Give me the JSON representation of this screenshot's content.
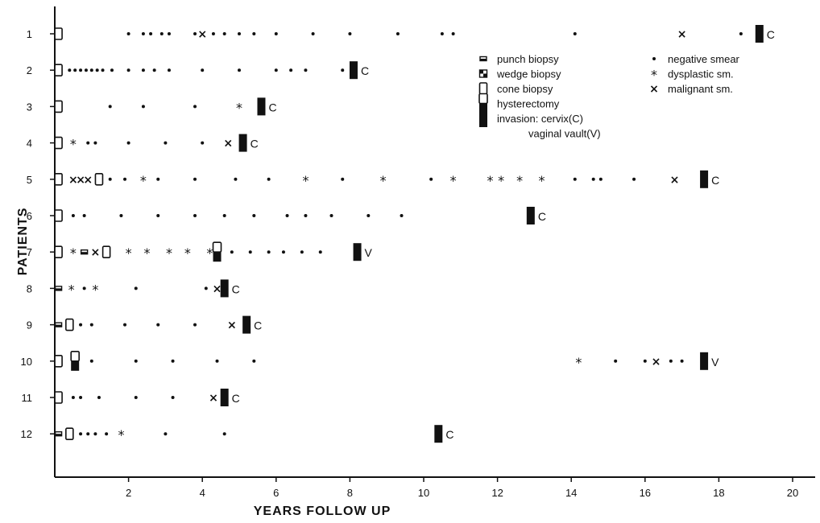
{
  "chart_data": {
    "type": "scatter",
    "xlabel": "YEARS FOLLOW UP",
    "ylabel": "PATIENTS",
    "xlim": [
      0,
      20.5
    ],
    "x_ticks": [
      2,
      4,
      6,
      8,
      10,
      12,
      14,
      16,
      18,
      20
    ],
    "y_categories": [
      "1",
      "2",
      "3",
      "4",
      "5",
      "6",
      "7",
      "8",
      "9",
      "10",
      "11",
      "12"
    ],
    "legend": {
      "position": "top-right",
      "items": [
        {
          "symbol": "punch",
          "label": "punch biopsy"
        },
        {
          "symbol": "wedge",
          "label": "wedge biopsy"
        },
        {
          "symbol": "cone",
          "label": "cone biopsy"
        },
        {
          "symbol": "hysterectomy",
          "label": "hysterectomy"
        },
        {
          "symbol": "invasion",
          "label": "invasion: cervix(C)"
        },
        {
          "symbol": "none",
          "label": "vaginal vault(V)"
        },
        {
          "symbol": "negative",
          "label": "negative smear"
        },
        {
          "symbol": "dysplastic",
          "label": "dysplastic sm."
        },
        {
          "symbol": "malignant",
          "label": "malignant sm."
        }
      ]
    },
    "series": [
      {
        "patient": "1",
        "events": [
          {
            "type": "cone",
            "x": 0.1
          },
          {
            "type": "negative",
            "x": [
              2.0,
              2.4,
              2.6,
              2.9,
              3.1,
              3.8,
              4.3,
              4.6,
              5.0,
              5.4,
              6.0,
              7.0,
              8.0,
              9.3,
              10.5,
              10.8,
              14.1,
              18.6
            ]
          },
          {
            "type": "malignant",
            "x": [
              4.0,
              17.0
            ]
          },
          {
            "type": "invasion",
            "x": 19.1,
            "label": "C"
          }
        ]
      },
      {
        "patient": "2",
        "events": [
          {
            "type": "cone",
            "x": 0.1
          },
          {
            "type": "negative",
            "x": [
              0.4,
              0.55,
              0.7,
              0.85,
              1.0,
              1.15,
              1.3,
              1.55,
              2.0,
              2.4,
              2.7,
              3.1,
              4.0,
              5.0,
              6.0,
              6.4,
              6.8,
              7.8
            ]
          },
          {
            "type": "invasion",
            "x": 8.1,
            "label": "C"
          }
        ]
      },
      {
        "patient": "3",
        "events": [
          {
            "type": "cone",
            "x": 0.1
          },
          {
            "type": "negative",
            "x": [
              1.5,
              2.4,
              3.8
            ]
          },
          {
            "type": "dysplastic",
            "x": [
              5.0
            ]
          },
          {
            "type": "invasion",
            "x": 5.6,
            "label": "C"
          }
        ]
      },
      {
        "patient": "4",
        "events": [
          {
            "type": "cone",
            "x": 0.1
          },
          {
            "type": "dysplastic",
            "x": [
              0.5
            ]
          },
          {
            "type": "negative",
            "x": [
              0.9,
              1.1,
              2.0,
              3.0,
              4.0
            ]
          },
          {
            "type": "malignant",
            "x": [
              4.7
            ]
          },
          {
            "type": "invasion",
            "x": 5.1,
            "label": "C"
          }
        ]
      },
      {
        "patient": "5",
        "events": [
          {
            "type": "cone",
            "x": [
              0.1,
              1.2
            ]
          },
          {
            "type": "malignant",
            "x": [
              0.5,
              0.7,
              0.9
            ]
          },
          {
            "type": "negative",
            "x": [
              1.5,
              1.9,
              2.8,
              3.8,
              4.9,
              5.8,
              7.8,
              10.2,
              14.1,
              14.6,
              14.8,
              15.7
            ]
          },
          {
            "type": "dysplastic",
            "x": [
              2.4,
              6.8,
              8.9,
              10.8,
              11.8,
              12.1,
              12.6,
              13.2
            ]
          },
          {
            "type": "malignant",
            "x": [
              16.8
            ]
          },
          {
            "type": "invasion",
            "x": 17.6,
            "label": "C"
          }
        ]
      },
      {
        "patient": "6",
        "events": [
          {
            "type": "cone",
            "x": 0.1
          },
          {
            "type": "negative",
            "x": [
              0.5,
              0.8,
              1.8,
              2.8,
              3.8,
              4.6,
              5.4,
              6.3,
              6.8,
              7.5,
              8.5,
              9.4
            ]
          },
          {
            "type": "invasion",
            "x": 12.9,
            "label": "C"
          }
        ]
      },
      {
        "patient": "7",
        "events": [
          {
            "type": "cone",
            "x": [
              0.1,
              1.4
            ]
          },
          {
            "type": "dysplastic",
            "x": [
              0.5,
              2.0,
              2.5,
              3.1,
              3.6,
              4.2
            ]
          },
          {
            "type": "punch",
            "x": [
              0.8
            ]
          },
          {
            "type": "malignant",
            "x": [
              1.1
            ]
          },
          {
            "type": "hysterectomy",
            "x": 4.4
          },
          {
            "type": "negative",
            "x": [
              4.8,
              5.3,
              5.8,
              6.2,
              6.7,
              7.2
            ]
          },
          {
            "type": "invasion",
            "x": 8.2,
            "label": "V"
          }
        ]
      },
      {
        "patient": "8",
        "events": [
          {
            "type": "punch",
            "x": [
              0.1
            ]
          },
          {
            "type": "dysplastic",
            "x": [
              0.45,
              1.1
            ]
          },
          {
            "type": "negative",
            "x": [
              0.8,
              2.2,
              4.1
            ]
          },
          {
            "type": "malignant",
            "x": [
              4.4
            ]
          },
          {
            "type": "invasion",
            "x": 4.6,
            "label": "C"
          }
        ]
      },
      {
        "patient": "9",
        "events": [
          {
            "type": "punch",
            "x": [
              0.1
            ]
          },
          {
            "type": "cone",
            "x": [
              0.4
            ]
          },
          {
            "type": "negative",
            "x": [
              0.7,
              1.0,
              1.9,
              2.8,
              3.8
            ]
          },
          {
            "type": "malignant",
            "x": [
              4.8
            ]
          },
          {
            "type": "invasion",
            "x": 5.2,
            "label": "C"
          }
        ]
      },
      {
        "patient": "10",
        "events": [
          {
            "type": "cone",
            "x": 0.1
          },
          {
            "type": "hysterectomy",
            "x": 0.55
          },
          {
            "type": "negative",
            "x": [
              1.0,
              2.2,
              3.2,
              4.4,
              5.4,
              15.2,
              16.0,
              16.7,
              17.0
            ]
          },
          {
            "type": "dysplastic",
            "x": [
              14.2
            ]
          },
          {
            "type": "malignant",
            "x": [
              16.3
            ]
          },
          {
            "type": "invasion",
            "x": 17.6,
            "label": "V"
          }
        ]
      },
      {
        "patient": "11",
        "events": [
          {
            "type": "cone",
            "x": 0.1
          },
          {
            "type": "negative",
            "x": [
              0.5,
              0.7,
              1.2,
              2.2,
              3.2
            ]
          },
          {
            "type": "malignant",
            "x": [
              4.3
            ]
          },
          {
            "type": "invasion",
            "x": 4.6,
            "label": "C"
          }
        ]
      },
      {
        "patient": "12",
        "events": [
          {
            "type": "punch",
            "x": [
              0.1
            ]
          },
          {
            "type": "cone",
            "x": [
              0.4
            ]
          },
          {
            "type": "negative",
            "x": [
              0.7,
              0.9,
              1.1,
              1.4,
              3.0,
              4.6
            ]
          },
          {
            "type": "dysplastic",
            "x": [
              1.8
            ]
          },
          {
            "type": "invasion",
            "x": 10.4,
            "label": "C"
          }
        ]
      }
    ]
  }
}
